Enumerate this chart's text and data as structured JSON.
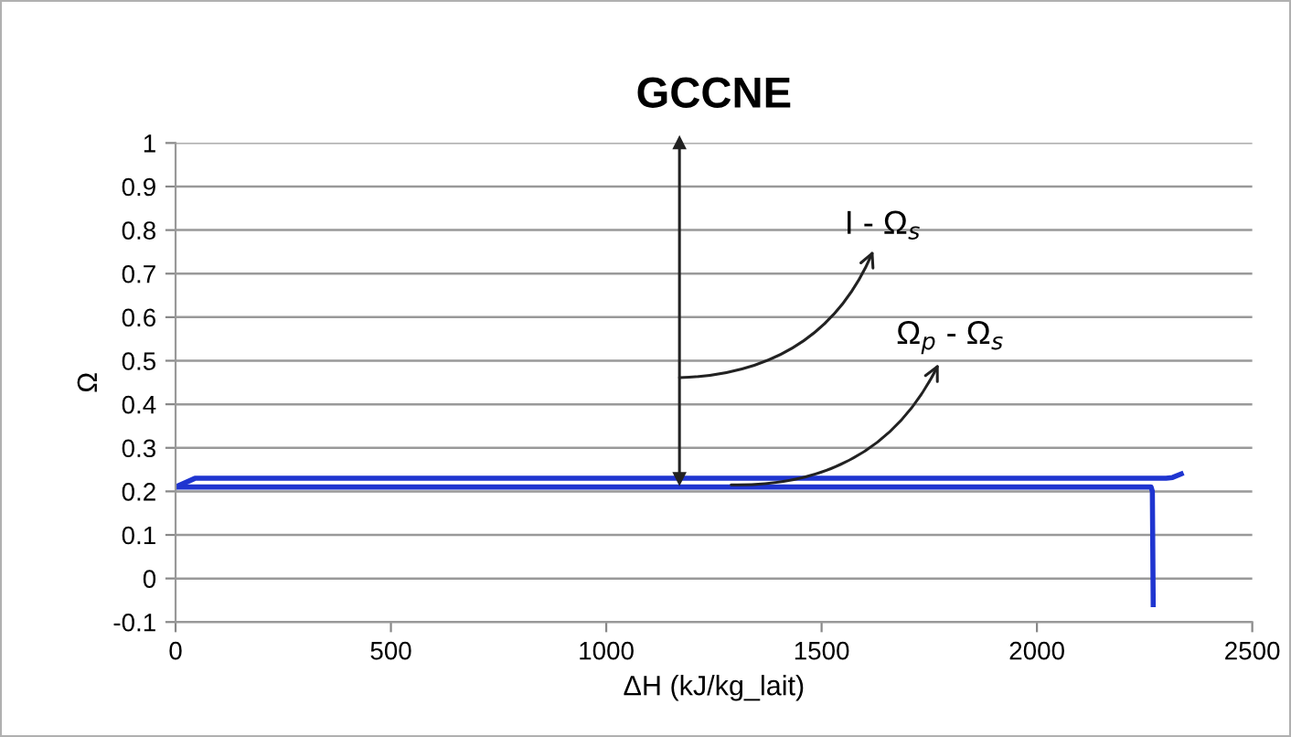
{
  "chart_data": {
    "type": "line",
    "title": "GCCNE",
    "xlabel": "ΔH (kJ/kg_lait)",
    "ylabel": "Ω",
    "xlim": [
      0,
      2500
    ],
    "xticks": [
      0,
      500,
      1000,
      1500,
      2000,
      2500
    ],
    "ylim": [
      -0.1,
      1
    ],
    "yticks": [
      -0.1,
      0,
      0.1,
      0.2,
      0.3,
      0.4,
      0.5,
      0.6,
      0.7,
      0.8,
      0.9,
      1
    ],
    "grid": "y",
    "marker": "none",
    "line_style": "solid",
    "series": [
      {
        "color": "#1f35d0",
        "x": [
          0,
          2265,
          2268,
          2270
        ],
        "values": [
          0.21,
          0.21,
          0.2,
          -0.06
        ]
      },
      {
        "color": "#1f35d0",
        "x": [
          0,
          45,
          2300,
          2315,
          2335
        ],
        "values": [
          0.21,
          0.23,
          0.23,
          0.232,
          0.24
        ]
      }
    ],
    "ref_lines": [
      {
        "axis": "x",
        "value": 1170,
        "label": "I - Ω$_{s}$"
      }
    ],
    "annotations": [
      {
        "text": "Ω$_{p}$ - Ω$_{s}$",
        "x": 1290,
        "y": 0.215
      }
    ]
  }
}
